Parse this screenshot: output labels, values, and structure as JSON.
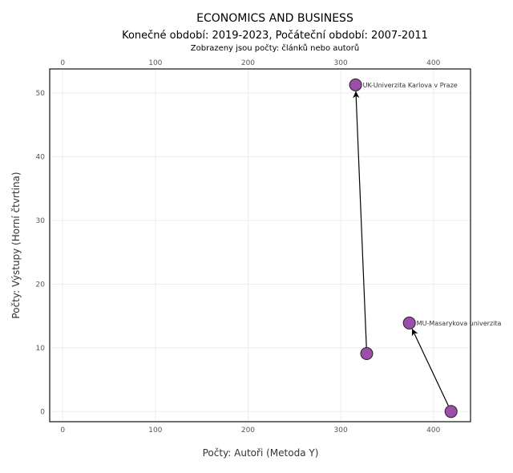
{
  "chart_data": {
    "type": "scatter",
    "title": "ECONOMICS AND BUSINESS",
    "subtitle": "Konečné období: 2019-2023, Počáteční období: 2007-2011",
    "subtitle2": "Zobrazeny jsou počty: článků nebo autorů",
    "xlabel": "Počty: Autoři (Metoda Y)",
    "ylabel": "Počty: Výstupy (Horní čtvrtina)",
    "xlim": [
      -14,
      440
    ],
    "ylim": [
      -1.6,
      53.8
    ],
    "xticks": [
      0,
      100,
      200,
      300,
      400
    ],
    "yticks": [
      0,
      10,
      20,
      30,
      40,
      50
    ],
    "grid": true,
    "marker_color": "#9b4fa8",
    "series": [
      {
        "name": "UK-Univerzita Karlova v Praze",
        "start": {
          "x": 328,
          "y": 9.1
        },
        "end": {
          "x": 316,
          "y": 51.3
        }
      },
      {
        "name": "MU-Masarykova univerzita",
        "start": {
          "x": 419,
          "y": 0
        },
        "end": {
          "x": 374,
          "y": 13.9
        }
      }
    ]
  }
}
